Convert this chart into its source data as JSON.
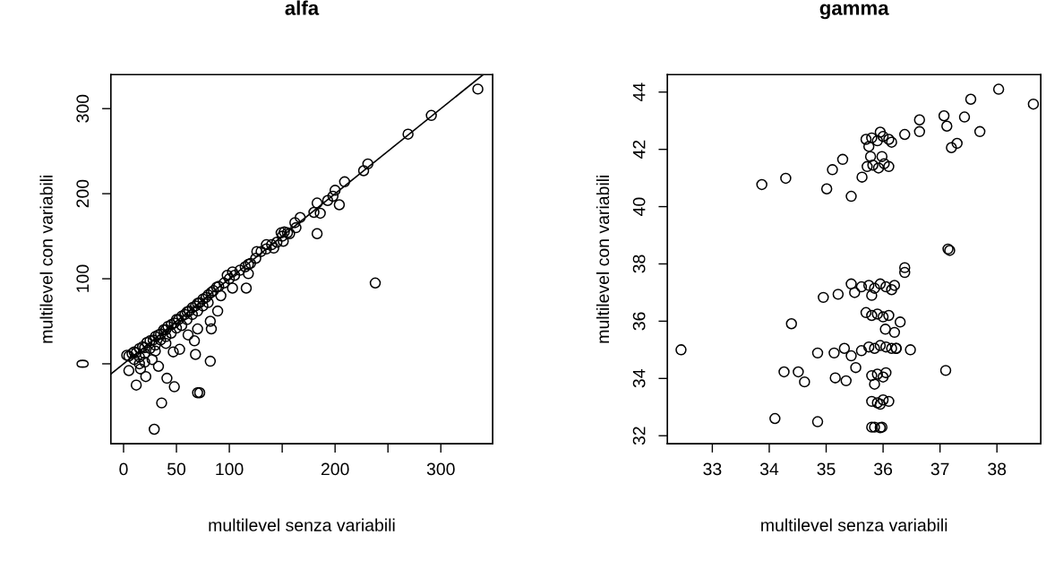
{
  "chart_data": [
    {
      "type": "scatter",
      "title": "alfa",
      "xlabel": "multilevel senza variabili",
      "ylabel": "multilevel con variabili",
      "marker": "circle",
      "xlim": [
        -12,
        349
      ],
      "ylim": [
        -94,
        340
      ],
      "xticks": [
        0,
        50,
        100,
        {
          "value": 150,
          "label": null
        },
        200,
        {
          "value": 250,
          "label": null
        },
        300
      ],
      "yticks": [
        0,
        100,
        200,
        300
      ],
      "series": [
        {
          "color": "#000000",
          "x": [
            335,
            291,
            269,
            231,
            227,
            209,
            200,
            198,
            204,
            193,
            183,
            186,
            183,
            180,
            238,
            167,
            162,
            163,
            157,
            149,
            151,
            142,
            135,
            126,
            118,
            118,
            116,
            103,
            98,
            103,
            92,
            89,
            82,
            83,
            82,
            70,
            67,
            61,
            53,
            47,
            68,
            72,
            70,
            48,
            41,
            36,
            29,
            33,
            12,
            21,
            16,
            5,
            27,
            3,
            5,
            8,
            10,
            12,
            15,
            18,
            20,
            22,
            25,
            28,
            30,
            33,
            35,
            38,
            40,
            42,
            45,
            48,
            50,
            52,
            55,
            58,
            60,
            62,
            65,
            68,
            70,
            72,
            75,
            78,
            80,
            83,
            85,
            88,
            90,
            10,
            15,
            20,
            25,
            30,
            35,
            40,
            45,
            50,
            55,
            60,
            65,
            70,
            75,
            80,
            20,
            15,
            30,
            40,
            95,
            100,
            105,
            110,
            115,
            120,
            125,
            130,
            135,
            140,
            145,
            150,
            152,
            155
          ],
          "values": [
            323,
            292,
            270,
            235,
            227,
            214,
            204,
            197,
            187,
            192,
            189,
            177,
            153,
            178,
            95,
            172,
            166,
            160,
            153,
            154,
            144,
            136,
            140,
            132,
            117,
            106,
            89,
            108,
            104,
            89,
            80,
            62,
            50,
            41,
            3,
            41,
            27,
            34,
            17,
            14,
            11,
            -34,
            -34,
            -27,
            -17,
            -46,
            -77,
            -3,
            -25,
            -15,
            -6,
            -8,
            5,
            10,
            9,
            12,
            14,
            13,
            18,
            20,
            19,
            25,
            27,
            28,
            32,
            34,
            35,
            40,
            40,
            44,
            46,
            48,
            52,
            52,
            56,
            58,
            61,
            62,
            66,
            68,
            71,
            72,
            76,
            78,
            81,
            84,
            86,
            90,
            91,
            5,
            8,
            12,
            18,
            22,
            28,
            32,
            36,
            42,
            45,
            52,
            58,
            62,
            68,
            72,
            2,
            0,
            15,
            24,
            95,
            100,
            104,
            110,
            114,
            118,
            124,
            132,
            135,
            140,
            143,
            150,
            155,
            154
          ]
        },
        {
          "type": "line",
          "marker": "none",
          "color": "#000000",
          "x": [
            -12,
            340
          ],
          "values": [
            -12,
            340
          ]
        }
      ]
    },
    {
      "type": "scatter",
      "title": "gamma",
      "xlabel": "multilevel senza variabili",
      "ylabel": "multilevel con variabili",
      "marker": "circle",
      "xlim": [
        32.21,
        38.77
      ],
      "ylim": [
        31.72,
        44.61
      ],
      "xticks": [
        33,
        34,
        35,
        36,
        37,
        38
      ],
      "yticks": [
        32,
        34,
        36,
        38,
        40,
        42,
        44
      ],
      "series": [
        {
          "color": "#000000",
          "x": [
            32.45,
            33.87,
            34.29,
            35.01,
            35.11,
            35.29,
            35.44,
            35.63,
            36.38,
            36.64,
            36.64,
            37.07,
            37.12,
            37.2,
            37.3,
            37.43,
            37.54,
            37.7,
            38.03,
            38.64,
            37.14,
            37.17,
            36.38,
            36.38,
            35.44,
            34.95,
            35.21,
            35.5,
            34.39,
            36.3,
            36.04,
            36.2,
            34.85,
            35.14,
            35.32,
            35.44,
            36.23,
            36.48,
            35.52,
            34.26,
            34.51,
            34.62,
            35.16,
            35.35,
            37.1,
            34.1,
            34.85,
            35.7,
            35.8,
            35.9,
            36.0,
            36.1,
            36.15,
            35.75,
            35.95,
            35.72,
            35.82,
            35.92,
            36.02,
            36.1,
            35.78,
            35.98,
            35.62,
            35.75,
            35.85,
            35.95,
            36.05,
            36.15,
            36.2,
            35.8,
            35.8,
            35.9,
            36.0,
            36.1,
            35.7,
            35.75,
            35.85,
            35.95,
            36.05,
            36.15,
            36.23,
            35.62,
            35.8,
            35.9,
            36.0,
            36.05,
            35.85,
            35.8,
            35.9,
            36.0,
            36.1,
            35.95,
            35.8,
            35.85,
            35.95,
            35.98
          ],
          "values": [
            35.0,
            40.77,
            40.99,
            40.62,
            41.29,
            41.65,
            40.36,
            41.03,
            42.52,
            43.03,
            42.62,
            43.17,
            42.81,
            42.06,
            42.21,
            43.13,
            43.75,
            42.62,
            44.1,
            43.58,
            38.52,
            38.47,
            37.87,
            37.7,
            37.3,
            36.83,
            36.94,
            37.0,
            35.91,
            35.97,
            35.72,
            35.61,
            34.89,
            34.89,
            35.05,
            34.79,
            35.05,
            35.0,
            34.38,
            34.23,
            34.23,
            33.88,
            34.02,
            33.92,
            34.28,
            32.6,
            32.49,
            42.35,
            42.4,
            42.3,
            42.45,
            42.35,
            42.25,
            42.1,
            42.6,
            41.4,
            41.45,
            41.35,
            41.5,
            41.4,
            41.75,
            41.75,
            37.2,
            37.25,
            37.15,
            37.3,
            37.2,
            37.1,
            37.25,
            36.9,
            36.2,
            36.25,
            36.15,
            36.2,
            36.3,
            35.1,
            35.05,
            35.15,
            35.1,
            35.05,
            35.05,
            34.97,
            34.1,
            34.15,
            34.05,
            34.2,
            33.8,
            33.2,
            33.15,
            33.25,
            33.2,
            33.1,
            32.3,
            32.3,
            32.28,
            32.3
          ]
        }
      ]
    }
  ]
}
